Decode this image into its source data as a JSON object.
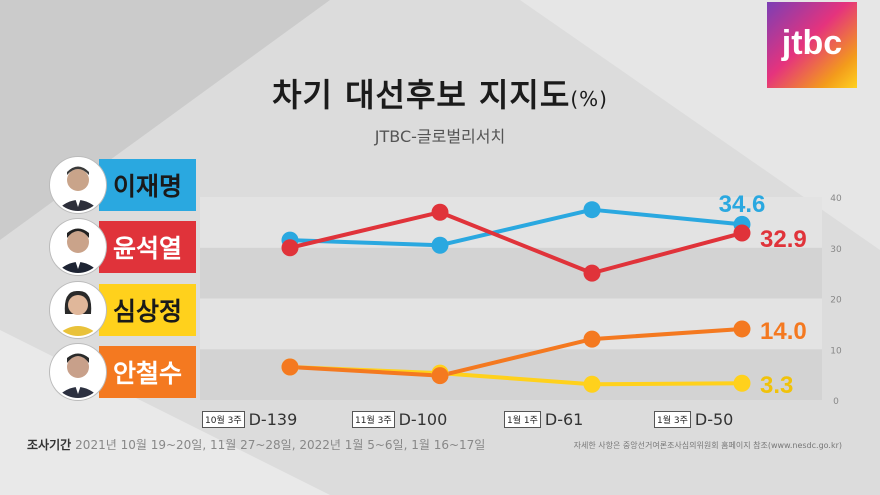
{
  "header": {
    "title": "차기 대선후보 지지도",
    "title_unit": "(%)",
    "subtitle": "JTBC-글로벌리서치"
  },
  "logo": {
    "text": "jtbc"
  },
  "candidates": [
    {
      "name": "이재명",
      "color": "#2aa8e0",
      "text_color": "#1a1a1a"
    },
    {
      "name": "윤석열",
      "color": "#e8333a",
      "text_color": "#ffffff"
    },
    {
      "name": "심상정",
      "color": "#ffd11c",
      "text_color": "#1a1a1a"
    },
    {
      "name": "안철수",
      "color": "#f47920",
      "text_color": "#ffffff"
    }
  ],
  "chart_data": {
    "type": "line",
    "x_badges": [
      "10월 3주",
      "11월 3주",
      "1월 1주",
      "1월 3주"
    ],
    "categories": [
      "D-139",
      "D-100",
      "D-61",
      "D-50"
    ],
    "ylim": [
      0,
      40
    ],
    "yticks": [
      "0",
      "10",
      "20",
      "30",
      "40"
    ],
    "grid": true,
    "series": [
      {
        "name": "이재명",
        "color": "#2aa8e0",
        "values": [
          31.5,
          30.5,
          37.5,
          34.6
        ],
        "end_label": "34.6"
      },
      {
        "name": "윤석열",
        "color": "#e0333a",
        "values": [
          30,
          37,
          25,
          32.9
        ],
        "end_label": "32.9"
      },
      {
        "name": "심상정",
        "color": "#ffd11c",
        "values": [
          6.5,
          5.3,
          3.1,
          3.3
        ],
        "end_label": "3.3"
      },
      {
        "name": "안철수",
        "color": "#f47920",
        "values": [
          6.5,
          4.8,
          12,
          14.0
        ],
        "end_label": "14.0"
      }
    ]
  },
  "footer": {
    "label": "조사기간",
    "period": "2021년 10월 19~20일, 11월 27~28일, 2022년 1월 5~6일, 1월 16~17일",
    "note": "자세한 사항은 중앙선거여론조사심의위원회 홈페이지 참조(www.nesdc.go.kr)"
  }
}
